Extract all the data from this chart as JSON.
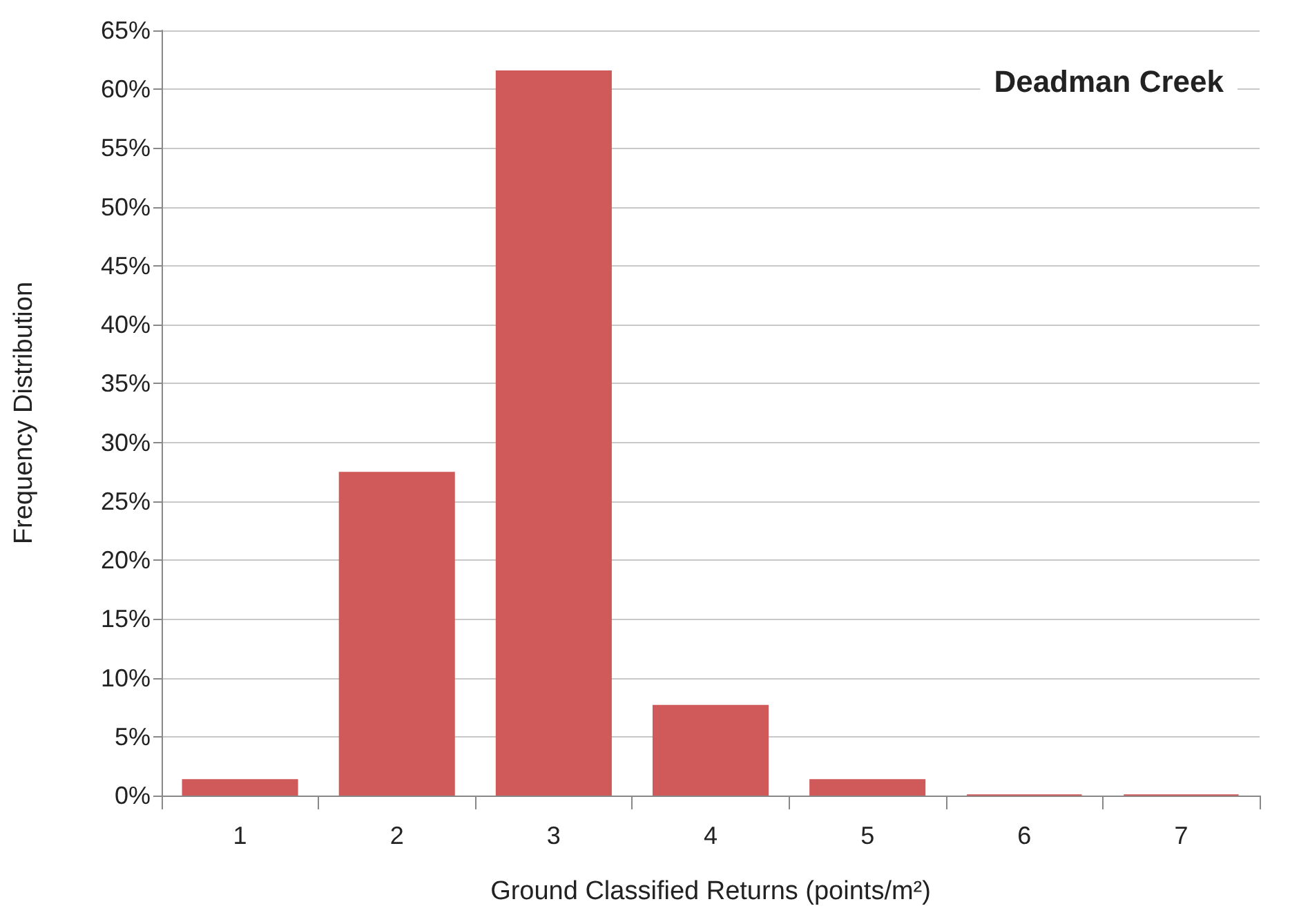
{
  "chart_data": {
    "type": "bar",
    "title": "Deadman Creek",
    "xlabel": "Ground Classified Returns (points/m²)",
    "ylabel": "Frequency Distribution",
    "categories": [
      "1",
      "2",
      "3",
      "4",
      "5",
      "6",
      "7"
    ],
    "values": [
      1.4,
      27.5,
      61.6,
      7.7,
      1.4,
      0.1,
      0.1
    ],
    "color": "#d05a5a",
    "ylim": [
      0,
      65
    ],
    "yticks": [
      {
        "value": 0,
        "label": "0%"
      },
      {
        "value": 5,
        "label": "5%"
      },
      {
        "value": 10,
        "label": "10%"
      },
      {
        "value": 15,
        "label": "15%"
      },
      {
        "value": 20,
        "label": "20%"
      },
      {
        "value": 25,
        "label": "25%"
      },
      {
        "value": 30,
        "label": "30%"
      },
      {
        "value": 35,
        "label": "35%"
      },
      {
        "value": 40,
        "label": "40%"
      },
      {
        "value": 45,
        "label": "45%"
      },
      {
        "value": 50,
        "label": "50%"
      },
      {
        "value": 55,
        "label": "55%"
      },
      {
        "value": 60,
        "label": "60%"
      },
      {
        "value": 65,
        "label": "65%"
      }
    ],
    "grid": "y"
  }
}
